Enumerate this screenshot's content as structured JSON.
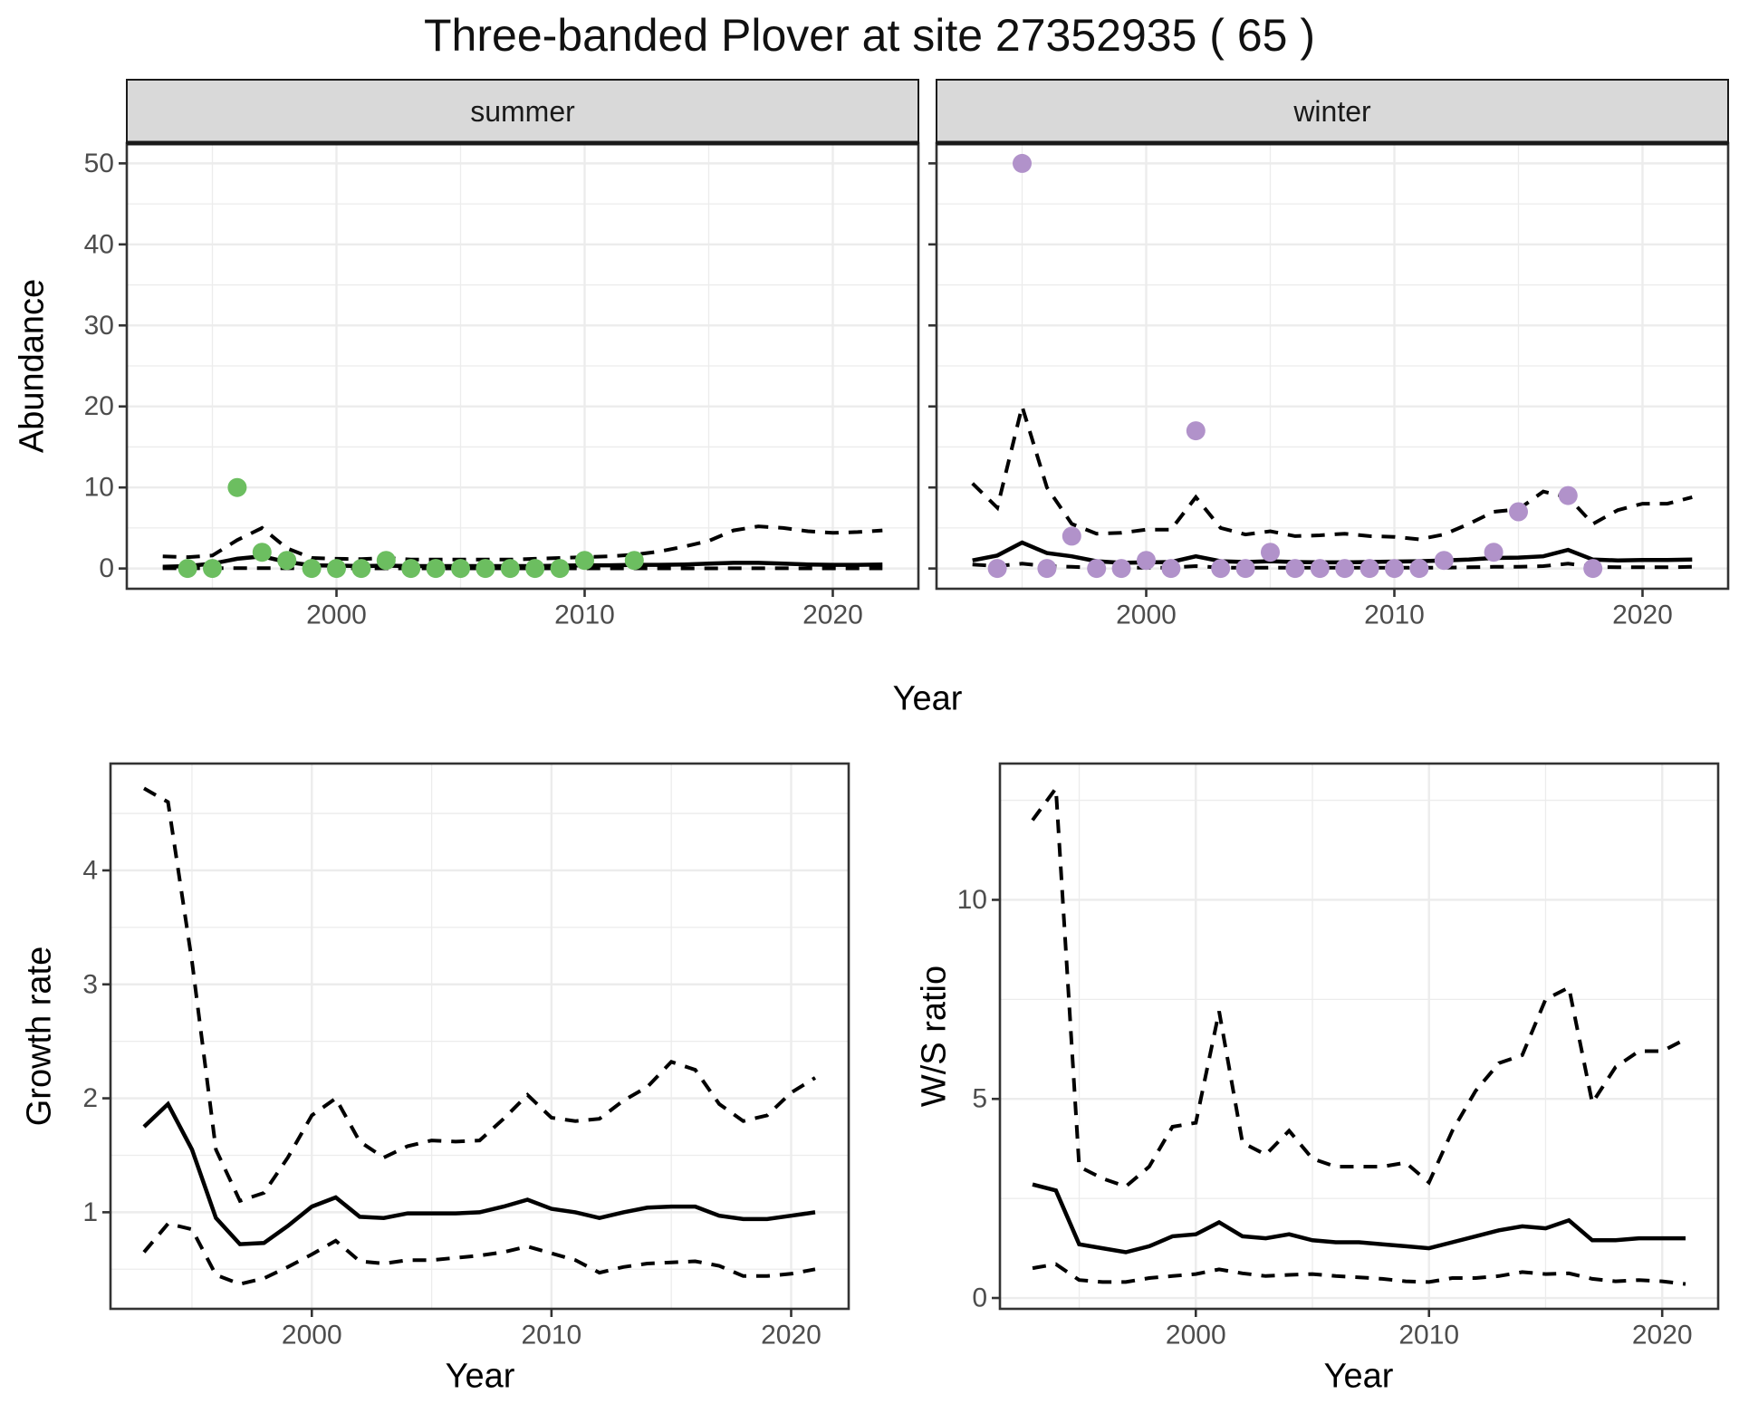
{
  "title": "Three-banded Plover at site 27352935 ( 65 )",
  "facets": {
    "summer": "summer",
    "winter": "winter"
  },
  "axis_titles": {
    "abundance": "Abundance",
    "year": "Year",
    "growth": "Growth rate",
    "ws": "W/S ratio"
  },
  "colors": {
    "summer_point": "#6cbe60",
    "winter_point": "#b192ca",
    "line": "#000000",
    "grid": "#ececec",
    "strip_bg": "#d9d9d9",
    "panel_border": "#333333",
    "tick_text": "#4d4d4d"
  },
  "chart_data": [
    {
      "id": "abundance_summer",
      "type": "line",
      "facet_label": "summer",
      "xlabel": "Year",
      "ylabel": "Abundance",
      "xticks": [
        2000,
        2010,
        2020
      ],
      "xminor": [
        1995,
        2005,
        2015
      ],
      "yticks": [
        0,
        10,
        20,
        30,
        40,
        50
      ],
      "yminor": [
        5,
        15,
        25,
        35,
        45
      ],
      "show_ylabels": true,
      "years": [
        1993,
        1994,
        1995,
        1996,
        1997,
        1998,
        1999,
        2000,
        2001,
        2002,
        2003,
        2004,
        2005,
        2006,
        2007,
        2008,
        2009,
        2010,
        2011,
        2012,
        2013,
        2014,
        2015,
        2016,
        2017,
        2018,
        2019,
        2020,
        2021,
        2022
      ],
      "series": [
        {
          "name": "median_fit",
          "style": "solid",
          "values": [
            0.2,
            0.3,
            0.6,
            1.2,
            1.5,
            0.8,
            0.4,
            0.35,
            0.3,
            0.35,
            0.3,
            0.3,
            0.3,
            0.3,
            0.3,
            0.3,
            0.35,
            0.4,
            0.4,
            0.45,
            0.45,
            0.5,
            0.6,
            0.7,
            0.7,
            0.6,
            0.5,
            0.45,
            0.45,
            0.5
          ]
        },
        {
          "name": "upper_ci",
          "style": "dashed",
          "values": [
            1.5,
            1.4,
            1.6,
            3.5,
            5.0,
            2.5,
            1.3,
            1.2,
            1.15,
            1.3,
            1.1,
            1.1,
            1.1,
            1.1,
            1.1,
            1.2,
            1.3,
            1.4,
            1.5,
            1.7,
            2.1,
            2.7,
            3.4,
            4.7,
            5.2,
            5.0,
            4.6,
            4.4,
            4.5,
            4.7
          ]
        },
        {
          "name": "lower_ci",
          "style": "dashed",
          "values": [
            0.03,
            0.03,
            0.03,
            0.05,
            0.05,
            0.03,
            0.02,
            0.02,
            0.02,
            0.02,
            0.02,
            0.02,
            0.02,
            0.02,
            0.02,
            0.02,
            0.02,
            0.02,
            0.02,
            0.02,
            0.02,
            0.02,
            0.02,
            0.03,
            0.03,
            0.03,
            0.02,
            0.02,
            0.02,
            0.02
          ]
        }
      ],
      "points": {
        "name": "observed_counts_summer",
        "color_key": "summer_point",
        "data": [
          [
            1994,
            0
          ],
          [
            1995,
            0
          ],
          [
            1996,
            10
          ],
          [
            1997,
            2
          ],
          [
            1998,
            1
          ],
          [
            1999,
            0
          ],
          [
            2000,
            0
          ],
          [
            2001,
            0
          ],
          [
            2002,
            1
          ],
          [
            2003,
            0
          ],
          [
            2004,
            0
          ],
          [
            2005,
            0
          ],
          [
            2006,
            0
          ],
          [
            2007,
            0
          ],
          [
            2008,
            0
          ],
          [
            2009,
            0
          ],
          [
            2010,
            1
          ],
          [
            2012,
            1
          ]
        ]
      }
    },
    {
      "id": "abundance_winter",
      "type": "line",
      "facet_label": "winter",
      "xlabel": "Year",
      "ylabel": "Abundance",
      "xticks": [
        2000,
        2010,
        2020
      ],
      "xminor": [
        1995,
        2005,
        2015
      ],
      "yticks": [
        0,
        10,
        20,
        30,
        40,
        50
      ],
      "yminor": [
        5,
        15,
        25,
        35,
        45
      ],
      "show_ylabels": false,
      "years": [
        1993,
        1994,
        1995,
        1996,
        1997,
        1998,
        1999,
        2000,
        2001,
        2002,
        2003,
        2004,
        2005,
        2006,
        2007,
        2008,
        2009,
        2010,
        2011,
        2012,
        2013,
        2014,
        2015,
        2016,
        2017,
        2018,
        2019,
        2020,
        2021,
        2022
      ],
      "series": [
        {
          "name": "median_fit",
          "style": "solid",
          "values": [
            1.0,
            1.6,
            3.2,
            1.9,
            1.5,
            0.9,
            0.7,
            0.75,
            0.8,
            1.5,
            0.9,
            0.8,
            0.9,
            0.8,
            0.75,
            0.75,
            0.8,
            0.85,
            0.9,
            1.0,
            1.1,
            1.3,
            1.35,
            1.5,
            2.3,
            1.1,
            1.0,
            1.05,
            1.05,
            1.1
          ]
        },
        {
          "name": "upper_ci",
          "style": "dashed",
          "values": [
            10.5,
            7.5,
            20,
            10,
            5.5,
            4.3,
            4.4,
            4.8,
            4.8,
            8.8,
            5.0,
            4.2,
            4.6,
            4.0,
            4.1,
            4.3,
            4.0,
            3.9,
            3.6,
            4.2,
            5.5,
            7.0,
            7.3,
            9.5,
            8.8,
            5.5,
            7.2,
            8.0,
            8.0,
            8.8
          ]
        },
        {
          "name": "lower_ci",
          "style": "dashed",
          "values": [
            0.5,
            0.3,
            0.6,
            0.3,
            0.2,
            0.1,
            0.1,
            0.1,
            0.1,
            0.3,
            0.1,
            0.1,
            0.1,
            0.1,
            0.1,
            0.1,
            0.1,
            0.1,
            0.1,
            0.1,
            0.15,
            0.2,
            0.2,
            0.3,
            0.6,
            0.2,
            0.15,
            0.15,
            0.15,
            0.2
          ]
        }
      ],
      "points": {
        "name": "observed_counts_winter",
        "color_key": "winter_point",
        "data": [
          [
            1994,
            0
          ],
          [
            1995,
            50
          ],
          [
            1996,
            0
          ],
          [
            1997,
            4
          ],
          [
            1998,
            0
          ],
          [
            1999,
            0
          ],
          [
            2000,
            1
          ],
          [
            2001,
            0
          ],
          [
            2002,
            17
          ],
          [
            2003,
            0
          ],
          [
            2004,
            0
          ],
          [
            2005,
            2
          ],
          [
            2006,
            0
          ],
          [
            2007,
            0
          ],
          [
            2008,
            0
          ],
          [
            2009,
            0
          ],
          [
            2010,
            0
          ],
          [
            2011,
            0
          ],
          [
            2012,
            1
          ],
          [
            2014,
            2
          ],
          [
            2015,
            7
          ],
          [
            2017,
            9
          ],
          [
            2018,
            0
          ]
        ]
      }
    },
    {
      "id": "growth_rate",
      "type": "line",
      "xlabel": "Year",
      "ylabel": "Growth rate",
      "xticks": [
        2000,
        2010,
        2020
      ],
      "xminor": [
        1995,
        2005,
        2015
      ],
      "yticks": [
        1,
        2,
        3,
        4
      ],
      "yminor": [
        0.5,
        1.5,
        2.5,
        3.5,
        4.5
      ],
      "show_ylabels": true,
      "years": [
        1993,
        1994,
        1995,
        1996,
        1997,
        1998,
        1999,
        2000,
        2001,
        2002,
        2003,
        2004,
        2005,
        2006,
        2007,
        2008,
        2009,
        2010,
        2011,
        2012,
        2013,
        2014,
        2015,
        2016,
        2017,
        2018,
        2019,
        2020,
        2021
      ],
      "series": [
        {
          "name": "median_growth",
          "style": "solid",
          "values": [
            1.75,
            1.95,
            1.55,
            0.95,
            0.72,
            0.73,
            0.88,
            1.05,
            1.13,
            0.96,
            0.95,
            0.99,
            0.99,
            0.99,
            1.0,
            1.05,
            1.11,
            1.03,
            1.0,
            0.95,
            1.0,
            1.04,
            1.05,
            1.05,
            0.97,
            0.94,
            0.94,
            0.97,
            1.0
          ]
        },
        {
          "name": "upper_ci",
          "style": "dashed",
          "values": [
            4.72,
            4.6,
            3.2,
            1.55,
            1.1,
            1.17,
            1.48,
            1.85,
            2.0,
            1.62,
            1.48,
            1.58,
            1.63,
            1.62,
            1.63,
            1.82,
            2.03,
            1.83,
            1.8,
            1.82,
            1.98,
            2.1,
            2.32,
            2.25,
            1.95,
            1.8,
            1.85,
            2.05,
            2.18
          ]
        },
        {
          "name": "lower_ci",
          "style": "dashed",
          "values": [
            0.65,
            0.9,
            0.85,
            0.45,
            0.37,
            0.42,
            0.52,
            0.63,
            0.75,
            0.57,
            0.55,
            0.58,
            0.58,
            0.6,
            0.62,
            0.65,
            0.7,
            0.64,
            0.58,
            0.47,
            0.52,
            0.55,
            0.56,
            0.57,
            0.53,
            0.44,
            0.44,
            0.46,
            0.5
          ]
        }
      ],
      "points": null
    },
    {
      "id": "ws_ratio",
      "type": "line",
      "xlabel": "Year",
      "ylabel": "W/S ratio",
      "xticks": [
        2000,
        2010,
        2020
      ],
      "xminor": [
        1995,
        2005,
        2015
      ],
      "yticks": [
        0,
        5,
        10
      ],
      "yminor": [
        2.5,
        7.5,
        12.5
      ],
      "show_ylabels": true,
      "years": [
        1993,
        1994,
        1995,
        1996,
        1997,
        1998,
        1999,
        2000,
        2001,
        2002,
        2003,
        2004,
        2005,
        2006,
        2007,
        2008,
        2009,
        2010,
        2011,
        2012,
        2013,
        2014,
        2015,
        2016,
        2017,
        2018,
        2019,
        2020,
        2021
      ],
      "series": [
        {
          "name": "median_ws",
          "style": "solid",
          "values": [
            2.85,
            2.7,
            1.35,
            1.25,
            1.15,
            1.3,
            1.55,
            1.6,
            1.9,
            1.55,
            1.5,
            1.6,
            1.45,
            1.4,
            1.4,
            1.35,
            1.3,
            1.25,
            1.4,
            1.55,
            1.7,
            1.8,
            1.75,
            1.95,
            1.45,
            1.45,
            1.5,
            1.5,
            1.5
          ]
        },
        {
          "name": "upper_ci",
          "style": "dashed",
          "values": [
            12.0,
            12.8,
            3.3,
            3.0,
            2.8,
            3.3,
            4.3,
            4.4,
            7.2,
            3.9,
            3.6,
            4.2,
            3.5,
            3.3,
            3.3,
            3.3,
            3.4,
            2.9,
            4.2,
            5.2,
            5.9,
            6.1,
            7.5,
            7.8,
            4.9,
            5.8,
            6.2,
            6.2,
            6.5
          ]
        },
        {
          "name": "lower_ci",
          "style": "dashed",
          "values": [
            0.75,
            0.85,
            0.45,
            0.4,
            0.4,
            0.5,
            0.55,
            0.6,
            0.72,
            0.62,
            0.55,
            0.58,
            0.6,
            0.55,
            0.52,
            0.48,
            0.42,
            0.4,
            0.5,
            0.5,
            0.55,
            0.65,
            0.6,
            0.62,
            0.48,
            0.42,
            0.45,
            0.42,
            0.35
          ]
        }
      ],
      "points": null
    }
  ]
}
